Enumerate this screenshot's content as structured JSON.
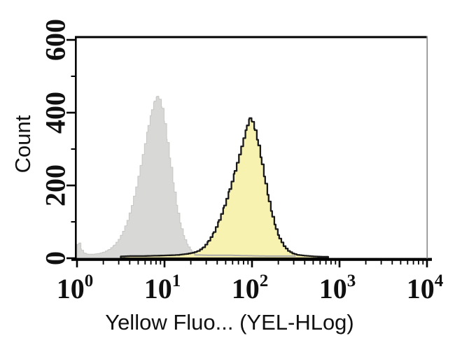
{
  "chart_data": {
    "type": "area",
    "subtype": "flow-cytometry-histogram-overlay",
    "title": "",
    "grid": false,
    "legend": null,
    "x_axis": {
      "label": "Yellow Fluo... (YEL-HLog)",
      "scale": "log10",
      "range_exponents": [
        0,
        4
      ],
      "ticks": [
        {
          "exponent": 0,
          "display": "10⁰"
        },
        {
          "exponent": 1,
          "display": "10¹"
        },
        {
          "exponent": 2,
          "display": "10²"
        },
        {
          "exponent": 3,
          "display": "10³"
        },
        {
          "exponent": 4,
          "display": "10⁴"
        }
      ],
      "minor_mantissas": [
        2,
        3,
        4,
        5,
        6,
        7,
        8,
        9
      ]
    },
    "y_axis": {
      "label": "Count",
      "range": [
        0,
        600
      ],
      "major_ticks": [
        0,
        200,
        400,
        600
      ],
      "minor_ticks": [
        100,
        300,
        500
      ]
    },
    "colors": {
      "background": "#ffffff",
      "frame": "#000000",
      "right_spine": "#8e8e8e",
      "control_fill": "#d8d8d6",
      "control_edge": "#c6c6c4",
      "sample_fill": "#f8f2b0",
      "sample_outline": "#1a1a1a",
      "tail_overlay": "#abaaa8",
      "text": "#101010"
    },
    "series": [
      {
        "name": "control-gray",
        "role": "unstained-control-histogram",
        "fill": "#d8d8d6",
        "stroke": "#c6c6c4",
        "stroke_width": 1,
        "peak_log10_x": 0.91,
        "peak_x_value": 8.1,
        "peak_count": 445,
        "points": [
          [
            0.0,
            38
          ],
          [
            0.02,
            42
          ],
          [
            0.05,
            22
          ],
          [
            0.08,
            14
          ],
          [
            0.12,
            11
          ],
          [
            0.18,
            11
          ],
          [
            0.24,
            13
          ],
          [
            0.3,
            17
          ],
          [
            0.36,
            24
          ],
          [
            0.42,
            36
          ],
          [
            0.47,
            52
          ],
          [
            0.52,
            74
          ],
          [
            0.57,
            104
          ],
          [
            0.62,
            145
          ],
          [
            0.67,
            196
          ],
          [
            0.72,
            255
          ],
          [
            0.77,
            315
          ],
          [
            0.81,
            365
          ],
          [
            0.85,
            408
          ],
          [
            0.88,
            432
          ],
          [
            0.91,
            445
          ],
          [
            0.94,
            437
          ],
          [
            0.97,
            412
          ],
          [
            1.0,
            370
          ],
          [
            1.03,
            318
          ],
          [
            1.07,
            250
          ],
          [
            1.11,
            182
          ],
          [
            1.15,
            124
          ],
          [
            1.19,
            81
          ],
          [
            1.23,
            51
          ],
          [
            1.27,
            31
          ],
          [
            1.31,
            19
          ],
          [
            1.35,
            13
          ],
          [
            1.4,
            10
          ],
          [
            1.5,
            9
          ],
          [
            1.65,
            8
          ],
          [
            1.8,
            8
          ],
          [
            1.95,
            7
          ],
          [
            2.1,
            6
          ],
          [
            2.25,
            6
          ],
          [
            2.26,
            0
          ]
        ]
      },
      {
        "name": "sample-yellow",
        "role": "stained-sample-histogram",
        "fill": "#f8f2b0",
        "stroke": "#1a1a1a",
        "stroke_width": 2.3,
        "peak_log10_x": 1.97,
        "peak_x_value": 93,
        "peak_count": 385,
        "points": [
          [
            0.5,
            5
          ],
          [
            0.6,
            6
          ],
          [
            0.75,
            6
          ],
          [
            0.9,
            7
          ],
          [
            1.05,
            8
          ],
          [
            1.15,
            9
          ],
          [
            1.25,
            12
          ],
          [
            1.32,
            15
          ],
          [
            1.38,
            20
          ],
          [
            1.44,
            30
          ],
          [
            1.5,
            48
          ],
          [
            1.56,
            72
          ],
          [
            1.62,
            105
          ],
          [
            1.68,
            145
          ],
          [
            1.74,
            190
          ],
          [
            1.8,
            240
          ],
          [
            1.85,
            285
          ],
          [
            1.9,
            330
          ],
          [
            1.94,
            365
          ],
          [
            1.97,
            385
          ],
          [
            2.0,
            375
          ],
          [
            2.03,
            352
          ],
          [
            2.07,
            310
          ],
          [
            2.11,
            258
          ],
          [
            2.15,
            205
          ],
          [
            2.19,
            156
          ],
          [
            2.23,
            114
          ],
          [
            2.27,
            80
          ],
          [
            2.31,
            54
          ],
          [
            2.36,
            33
          ],
          [
            2.41,
            20
          ],
          [
            2.46,
            13
          ],
          [
            2.52,
            9
          ],
          [
            2.6,
            7
          ],
          [
            2.7,
            5
          ],
          [
            2.8,
            4
          ],
          [
            2.86,
            4
          ],
          [
            2.87,
            0
          ]
        ]
      },
      {
        "name": "control-tail-overlay",
        "role": "control-tail-line-over-sample",
        "fill": "none",
        "stroke": "#abaaa8",
        "stroke_width": 2,
        "points": [
          [
            1.34,
            9
          ],
          [
            1.55,
            8
          ],
          [
            1.75,
            8
          ],
          [
            1.95,
            7
          ],
          [
            2.15,
            6
          ],
          [
            2.5,
            6
          ]
        ]
      }
    ]
  }
}
